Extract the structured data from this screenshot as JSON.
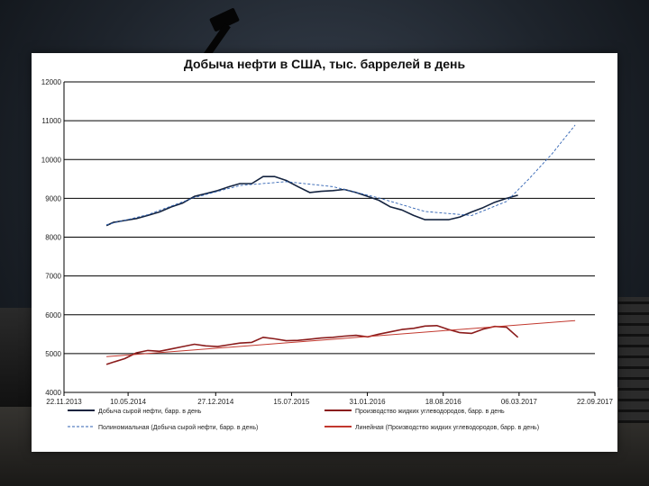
{
  "chart_data": {
    "type": "line",
    "title": "Добыча нефти в США, тыс. баррелей в день",
    "xlabel": "",
    "ylabel": "",
    "ylim": [
      4000,
      12000
    ],
    "yticks": [
      "4000",
      "5000",
      "6000",
      "7000",
      "8000",
      "9000",
      "10000",
      "11000",
      "12000"
    ],
    "xlim": [
      "2013-11-22",
      "2017-09-22"
    ],
    "xticks": [
      "22.11.2013",
      "10.05.2014",
      "27.12.2014",
      "15.07.2015",
      "31.01.2016",
      "18.08.2016",
      "06.03.2017",
      "22.09.2017"
    ],
    "grid": "horizontal",
    "legend": "bottom",
    "colors": {
      "crude": "#14233f",
      "ngl": "#8a1b1b",
      "poly": "#2f62b3",
      "linear": "#c2382e"
    },
    "series": [
      {
        "name": "Добыча сырой нефти, барр. в день",
        "style": "solid",
        "color": "crude",
        "x": [
          "2014-03-14",
          "2014-04-01",
          "2014-05-01",
          "2014-06-01",
          "2014-07-01",
          "2014-08-01",
          "2014-09-01",
          "2014-10-01",
          "2014-11-01",
          "2014-12-01",
          "2015-01-01",
          "2015-02-01",
          "2015-03-01",
          "2015-04-01",
          "2015-05-01",
          "2015-06-01",
          "2015-07-01",
          "2015-08-01",
          "2015-09-01",
          "2015-10-01",
          "2015-11-01",
          "2015-12-01",
          "2016-01-01",
          "2016-02-01",
          "2016-03-01",
          "2016-04-01",
          "2016-05-01",
          "2016-06-01",
          "2016-07-01",
          "2016-08-01",
          "2016-09-01",
          "2016-10-01",
          "2016-11-01",
          "2016-12-01",
          "2017-01-01",
          "2017-02-01",
          "2017-03-03"
        ],
        "y": [
          8300,
          8380,
          8430,
          8480,
          8560,
          8650,
          8780,
          8880,
          9050,
          9120,
          9200,
          9300,
          9380,
          9380,
          9560,
          9560,
          9460,
          9300,
          9150,
          9180,
          9200,
          9230,
          9150,
          9050,
          8950,
          8780,
          8700,
          8560,
          8450,
          8450,
          8450,
          8520,
          8650,
          8760,
          8900,
          9000,
          9080
        ]
      },
      {
        "name": "Полиномиальная (Добыча сырой нефти, барр. в день)",
        "style": "dashed",
        "color": "poly",
        "x": [
          "2014-03-14",
          "2014-07-01",
          "2014-11-01",
          "2015-03-01",
          "2015-07-01",
          "2015-11-01",
          "2016-03-01",
          "2016-07-01",
          "2016-11-01",
          "2017-02-01",
          "2017-04-01",
          "2017-06-01",
          "2017-08-01"
        ],
        "y": [
          8320,
          8580,
          9020,
          9330,
          9430,
          9300,
          9010,
          8660,
          8560,
          8920,
          9500,
          10150,
          10890
        ]
      },
      {
        "name": "Производство жидких углеводородов, барр. в день",
        "style": "solid",
        "color": "ngl",
        "x": [
          "2014-03-14",
          "2014-04-01",
          "2014-05-01",
          "2014-06-01",
          "2014-07-01",
          "2014-08-01",
          "2014-09-01",
          "2014-10-01",
          "2014-11-01",
          "2014-12-01",
          "2015-01-01",
          "2015-02-01",
          "2015-03-01",
          "2015-04-01",
          "2015-05-01",
          "2015-06-01",
          "2015-07-01",
          "2015-08-01",
          "2015-09-01",
          "2015-10-01",
          "2015-11-01",
          "2015-12-01",
          "2016-01-01",
          "2016-02-01",
          "2016-03-01",
          "2016-04-01",
          "2016-05-01",
          "2016-06-01",
          "2016-07-01",
          "2016-08-01",
          "2016-09-01",
          "2016-10-01",
          "2016-11-01",
          "2016-12-01",
          "2017-01-01",
          "2017-02-01",
          "2017-03-03"
        ],
        "y": [
          4720,
          4780,
          4870,
          5020,
          5080,
          5060,
          5120,
          5180,
          5240,
          5200,
          5180,
          5230,
          5270,
          5290,
          5420,
          5380,
          5330,
          5340,
          5370,
          5400,
          5420,
          5450,
          5470,
          5430,
          5500,
          5560,
          5620,
          5650,
          5710,
          5720,
          5620,
          5540,
          5520,
          5630,
          5700,
          5680,
          5420
        ]
      },
      {
        "name": "Линейная (Производство жидких углеводородов, барр. в день)",
        "style": "solid",
        "color": "linear",
        "x": [
          "2014-03-14",
          "2017-08-01"
        ],
        "y": [
          4920,
          5850
        ]
      }
    ]
  }
}
